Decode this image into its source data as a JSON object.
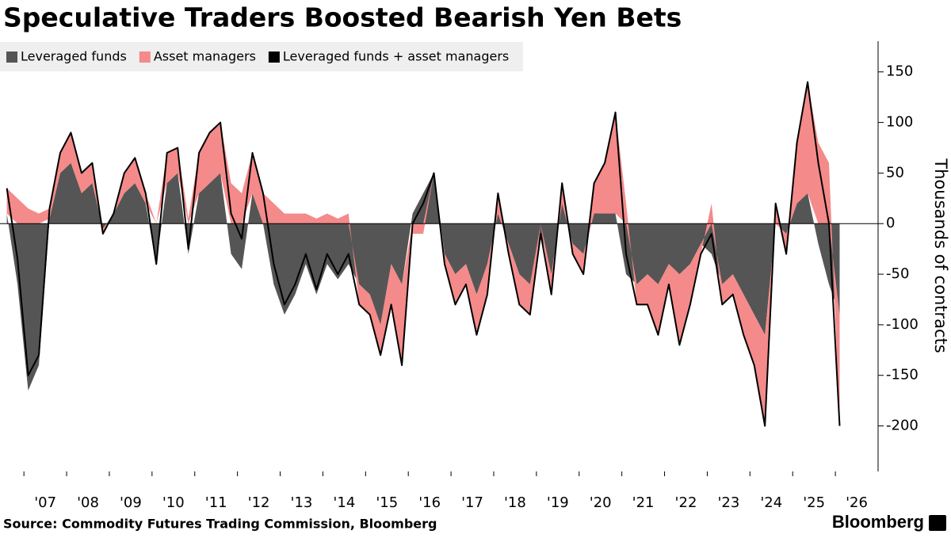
{
  "chart_data": {
    "type": "area",
    "title": "Speculative Traders Boosted Bearish Yen Bets",
    "y_label": "Thousands of contracts",
    "source": "Source: Commodity Futures Trading Commission, Bloomberg",
    "brand": "Bloomberg",
    "stacked": true,
    "grid": false,
    "legend": "top-left",
    "xlim": [
      2006.44,
      2027.0
    ],
    "ylim": [
      -245,
      178
    ],
    "yticks": [
      -200,
      -150,
      -100,
      -50,
      0,
      50,
      100,
      150
    ],
    "xticks": [
      {
        "value": 2007,
        "label": "'07"
      },
      {
        "value": 2008,
        "label": "'08"
      },
      {
        "value": 2009,
        "label": "'09"
      },
      {
        "value": 2010,
        "label": "'10"
      },
      {
        "value": 2011,
        "label": "'11"
      },
      {
        "value": 2012,
        "label": "'12"
      },
      {
        "value": 2013,
        "label": "'13"
      },
      {
        "value": 2014,
        "label": "'14"
      },
      {
        "value": 2015,
        "label": "'15"
      },
      {
        "value": 2016,
        "label": "'16"
      },
      {
        "value": 2017,
        "label": "'17"
      },
      {
        "value": 2018,
        "label": "'18"
      },
      {
        "value": 2019,
        "label": "'19"
      },
      {
        "value": 2020,
        "label": "'20"
      },
      {
        "value": 2021,
        "label": "'21"
      },
      {
        "value": 2022,
        "label": "'22"
      },
      {
        "value": 2023,
        "label": "'23"
      },
      {
        "value": 2024,
        "label": "'24"
      },
      {
        "value": 2025,
        "label": "'25"
      },
      {
        "value": 2026,
        "label": "'26"
      }
    ],
    "x": [
      2006.6,
      2006.85,
      2007.1,
      2007.35,
      2007.6,
      2007.85,
      2008.1,
      2008.35,
      2008.6,
      2008.85,
      2009.1,
      2009.35,
      2009.6,
      2009.85,
      2010.1,
      2010.35,
      2010.6,
      2010.85,
      2011.1,
      2011.35,
      2011.6,
      2011.85,
      2012.1,
      2012.35,
      2012.6,
      2012.85,
      2013.1,
      2013.35,
      2013.6,
      2013.85,
      2014.1,
      2014.35,
      2014.6,
      2014.85,
      2015.1,
      2015.35,
      2015.6,
      2015.85,
      2016.1,
      2016.35,
      2016.6,
      2016.85,
      2017.1,
      2017.35,
      2017.6,
      2017.85,
      2018.1,
      2018.35,
      2018.6,
      2018.85,
      2019.1,
      2019.35,
      2019.6,
      2019.85,
      2020.1,
      2020.35,
      2020.6,
      2020.85,
      2021.1,
      2021.35,
      2021.6,
      2021.85,
      2022.1,
      2022.35,
      2022.6,
      2022.85,
      2023.1,
      2023.35,
      2023.6,
      2023.85,
      2024.1,
      2024.35,
      2024.6,
      2024.85,
      2025.1,
      2025.35,
      2025.6,
      2025.85,
      2026.1
    ],
    "series": [
      {
        "name": "Leveraged funds",
        "type": "area",
        "color": "#555555",
        "values": [
          10,
          -60,
          -165,
          -140,
          5,
          50,
          60,
          30,
          40,
          -5,
          10,
          30,
          40,
          20,
          -40,
          40,
          50,
          -30,
          30,
          40,
          50,
          -30,
          -45,
          30,
          0,
          -60,
          -90,
          -70,
          -40,
          -70,
          -40,
          -55,
          -40,
          -60,
          -70,
          -100,
          -40,
          -60,
          10,
          30,
          50,
          -30,
          -50,
          -40,
          -70,
          -40,
          10,
          -20,
          -50,
          -60,
          -10,
          -50,
          20,
          -20,
          -30,
          10,
          10,
          10,
          -50,
          -60,
          -50,
          -60,
          -40,
          -50,
          -40,
          -20,
          -30,
          -60,
          -50,
          -70,
          -90,
          -110,
          0,
          -10,
          20,
          30,
          -20,
          -60,
          -90
        ]
      },
      {
        "name": "Asset managers",
        "type": "area",
        "color": "#f48a8a",
        "values": [
          25,
          25,
          15,
          10,
          10,
          20,
          30,
          20,
          20,
          -5,
          0,
          20,
          25,
          10,
          0,
          30,
          25,
          5,
          40,
          50,
          50,
          40,
          30,
          40,
          30,
          20,
          10,
          10,
          10,
          5,
          10,
          5,
          10,
          -20,
          -20,
          -30,
          -40,
          -80,
          -10,
          -10,
          0,
          -10,
          -30,
          -20,
          -40,
          -30,
          20,
          -10,
          -30,
          -30,
          0,
          -20,
          20,
          -10,
          -20,
          30,
          50,
          100,
          20,
          -20,
          -30,
          -50,
          -20,
          -70,
          -40,
          -10,
          20,
          -20,
          -20,
          -40,
          -50,
          -90,
          20,
          -20,
          60,
          110,
          80,
          60,
          -110
        ]
      },
      {
        "name": "Leveraged funds + asset managers",
        "type": "line",
        "color": "#000000",
        "values": [
          35,
          -35,
          -150,
          -130,
          15,
          70,
          90,
          50,
          60,
          -10,
          10,
          50,
          65,
          30,
          -40,
          70,
          75,
          -25,
          70,
          90,
          100,
          10,
          -15,
          70,
          30,
          -40,
          -80,
          -60,
          -30,
          -65,
          -30,
          -50,
          -30,
          -80,
          -90,
          -130,
          -80,
          -140,
          0,
          20,
          50,
          -40,
          -80,
          -60,
          -110,
          -70,
          30,
          -30,
          -80,
          -90,
          -10,
          -70,
          40,
          -30,
          -50,
          40,
          60,
          110,
          -30,
          -80,
          -80,
          -110,
          -60,
          -120,
          -80,
          -30,
          -10,
          -80,
          -70,
          -110,
          -140,
          -200,
          20,
          -30,
          80,
          140,
          60,
          0,
          -200
        ]
      }
    ]
  }
}
